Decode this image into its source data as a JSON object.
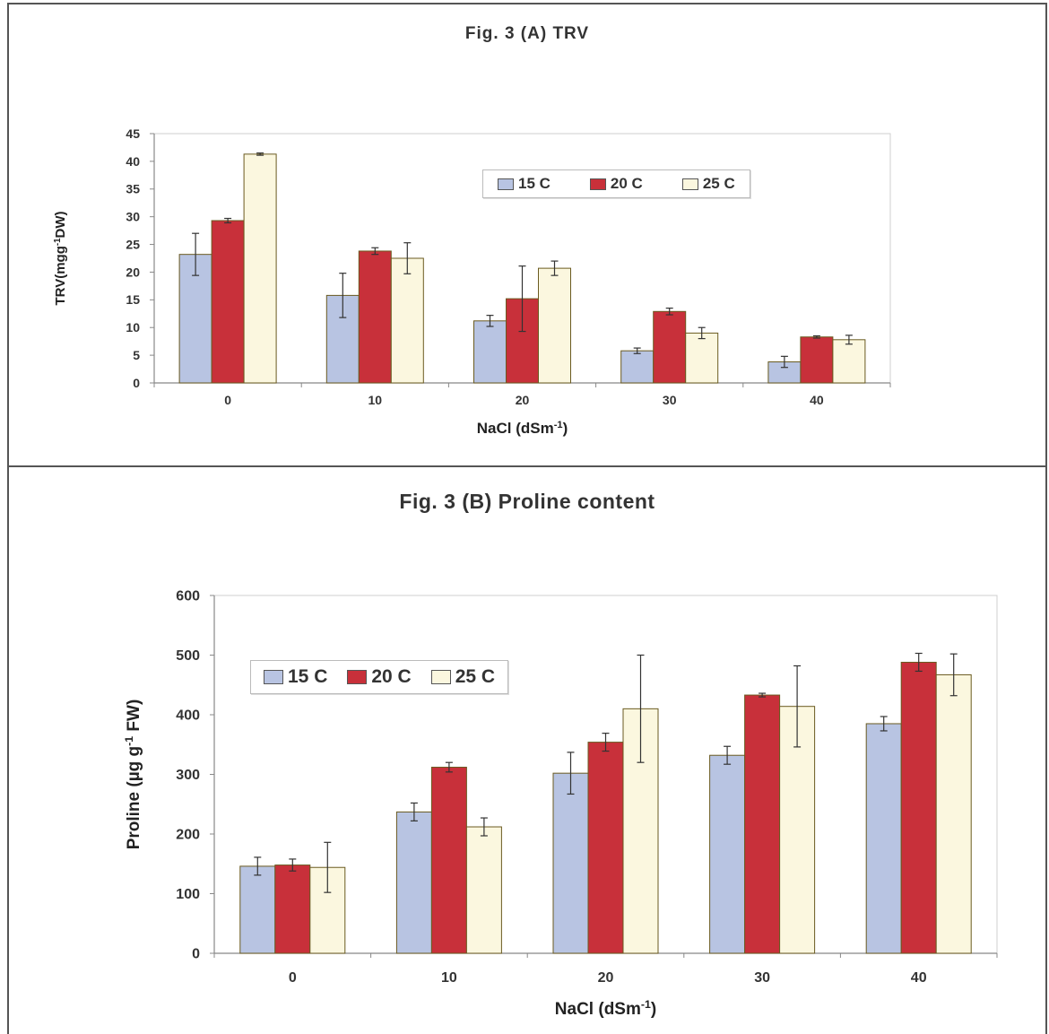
{
  "colors": {
    "s15": "#b8c4e2",
    "s20": "#c8303a",
    "s25": "#fbf7df",
    "outline": "#6a5a20",
    "axis": "#888888"
  },
  "chart_data": [
    {
      "type": "bar",
      "title": "Fig. 3 (A) TRV",
      "xlabel": "NaCl (dSm",
      "xlabel_sup": "-1",
      "xlabel_end": ")",
      "ylabel": "TRV(mgg",
      "ylabel_sup": "-1",
      "ylabel_end": "DW)",
      "categories": [
        "0",
        "10",
        "20",
        "30",
        "40"
      ],
      "yticks": [
        "0",
        "5",
        "10",
        "15",
        "20",
        "25",
        "30",
        "35",
        "40",
        "45"
      ],
      "ylim": [
        0,
        45
      ],
      "legend_position": "top-right",
      "series": [
        {
          "name": "15 C",
          "values": [
            23.2,
            15.8,
            11.2,
            5.8,
            3.8
          ],
          "errors": [
            3.8,
            4.0,
            1.0,
            0.5,
            1.0
          ]
        },
        {
          "name": "20 C",
          "values": [
            29.3,
            23.8,
            15.2,
            12.9,
            8.3
          ],
          "errors": [
            0.4,
            0.6,
            5.9,
            0.6,
            0.2
          ]
        },
        {
          "name": "25 C",
          "values": [
            41.3,
            22.5,
            20.7,
            9.0,
            7.8
          ],
          "errors": [
            0.2,
            2.8,
            1.3,
            1.0,
            0.8
          ]
        }
      ]
    },
    {
      "type": "bar",
      "title": "Fig. 3 (B) Proline content",
      "xlabel": "NaCl (dSm",
      "xlabel_sup": "-1",
      "xlabel_end": ")",
      "ylabel": "Proline (µg g",
      "ylabel_sup": "-1",
      "ylabel_end": " FW)",
      "categories": [
        "0",
        "10",
        "20",
        "30",
        "40"
      ],
      "yticks": [
        "0",
        "100",
        "200",
        "300",
        "400",
        "500",
        "600"
      ],
      "ylim": [
        0,
        600
      ],
      "legend_position": "top-left",
      "series": [
        {
          "name": "15 C",
          "values": [
            146,
            237,
            302,
            332,
            385
          ],
          "errors": [
            15,
            15,
            35,
            15,
            12
          ]
        },
        {
          "name": "20 C",
          "values": [
            148,
            312,
            354,
            433,
            488
          ],
          "errors": [
            10,
            8,
            15,
            3,
            15
          ]
        },
        {
          "name": "25 C",
          "values": [
            144,
            212,
            410,
            414,
            467
          ],
          "errors": [
            42,
            15,
            90,
            68,
            35
          ]
        }
      ]
    }
  ]
}
